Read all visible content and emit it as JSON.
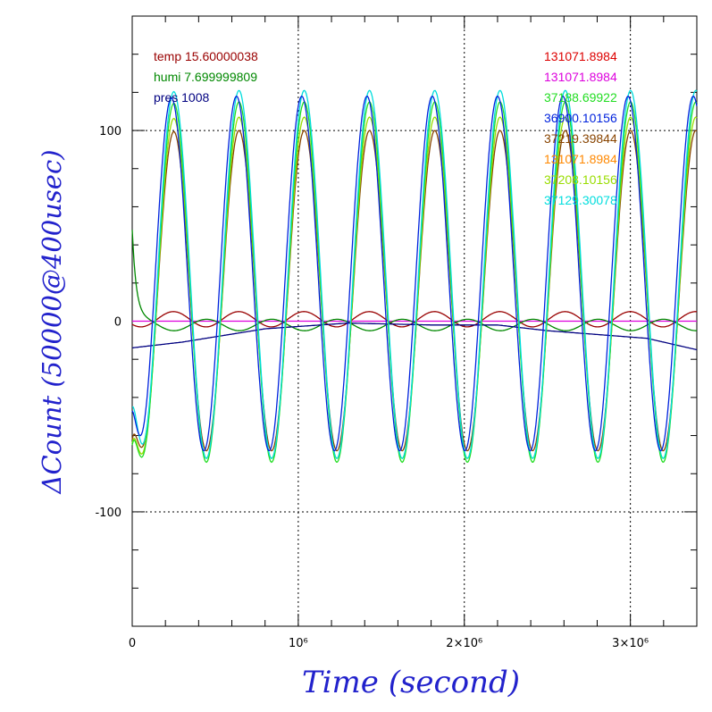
{
  "chart_data": {
    "type": "line",
    "xlabel": "Time (second)",
    "ylabel": "ΔCount (50000@400usec)",
    "xlim": [
      0,
      3400000
    ],
    "ylim": [
      -160,
      160
    ],
    "x_ticks": [
      {
        "value": 0,
        "label": "0"
      },
      {
        "value": 1000000,
        "label": "10⁶"
      },
      {
        "value": 2000000,
        "label": "2×10⁶"
      },
      {
        "value": 3000000,
        "label": "3×10⁶"
      }
    ],
    "y_ticks": [
      {
        "value": -100,
        "label": "-100"
      },
      {
        "value": 0,
        "label": "0"
      },
      {
        "value": 100,
        "label": "100"
      }
    ],
    "grid": true,
    "left_legend": [
      {
        "text": "temp 15.60000038",
        "color": "#990000"
      },
      {
        "text": "humi 7.699999809",
        "color": "#008800"
      },
      {
        "text": "pres 1008",
        "color": "#000080"
      }
    ],
    "right_legend": [
      {
        "text": "131071.8984",
        "color": "#dd0000"
      },
      {
        "text": "131071.8984",
        "color": "#dd00dd"
      },
      {
        "text": "37188.69922",
        "color": "#22dd22"
      },
      {
        "text": "36900.10156",
        "color": "#0022dd"
      },
      {
        "text": "37219.39844",
        "color": "#884400"
      },
      {
        "text": "131071.8984",
        "color": "#ff8800"
      },
      {
        "text": "37208.10156",
        "color": "#99dd00"
      },
      {
        "text": "37129.30078",
        "color": "#00dddd"
      }
    ],
    "series": [
      {
        "color": "#990000",
        "kind": "small_osc",
        "period": 393000,
        "phase": 150000,
        "amplitude": 4,
        "offset": 1
      },
      {
        "color": "#dd00dd",
        "kind": "flat",
        "offset": 0
      },
      {
        "color": "#008800",
        "kind": "humi",
        "period": 393000,
        "phase": 350000,
        "amplitude": 3,
        "offset": -2
      },
      {
        "color": "#000080",
        "kind": "pres",
        "points": [
          [
            0,
            -14
          ],
          [
            300000,
            -11
          ],
          [
            800000,
            -4
          ],
          [
            1300000,
            -1
          ],
          [
            1800000,
            -2
          ],
          [
            2200000,
            -2
          ],
          [
            2500000,
            -5
          ],
          [
            2800000,
            -7
          ],
          [
            3100000,
            -9
          ],
          [
            3400000,
            -15
          ]
        ]
      },
      {
        "color": "#884400",
        "kind": "osc",
        "period": 393000,
        "first_peak": 250000,
        "peak": 100,
        "trough": -68,
        "start": -62
      },
      {
        "color": "#99dd00",
        "kind": "osc",
        "period": 393000,
        "first_peak": 250000,
        "peak": 107,
        "trough": -72,
        "start": -64
      },
      {
        "color": "#22dd22",
        "kind": "osc",
        "period": 393000,
        "first_peak": 250000,
        "peak": 115,
        "trough": -74,
        "start": -65
      },
      {
        "color": "#00dddd",
        "kind": "osc",
        "period": 393000,
        "first_peak": 250000,
        "peak": 121,
        "trough": -72,
        "start": -45
      },
      {
        "color": "#0022dd",
        "kind": "osc",
        "period": 393000,
        "first_peak": 235000,
        "peak": 118,
        "trough": -68,
        "start": -47
      }
    ]
  }
}
